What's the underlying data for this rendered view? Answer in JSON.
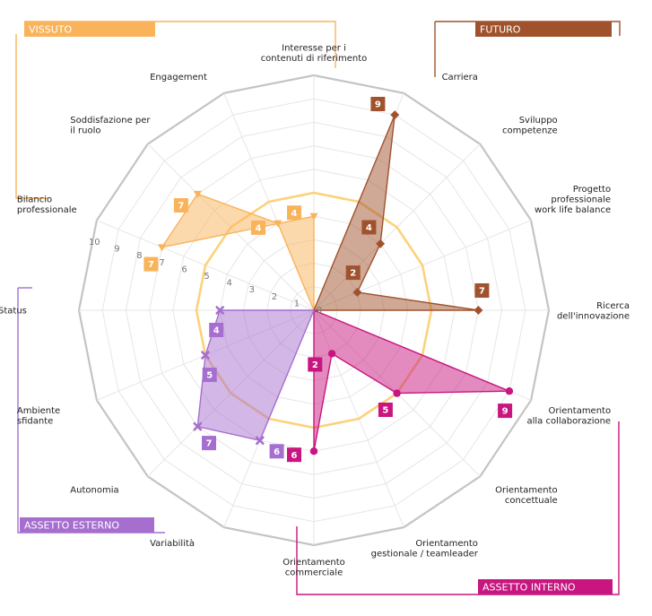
{
  "chart_data": {
    "type": "radar",
    "rmax": 10,
    "ticks": [
      "0",
      "1",
      "2",
      "3",
      "4",
      "5",
      "6",
      "7",
      "8",
      "9",
      "10"
    ],
    "axes": [
      [
        "Interesse per i",
        "contenuti di riferimento"
      ],
      [
        "Carriera"
      ],
      [
        "Sviluppo",
        "competenze"
      ],
      [
        "Progetto",
        "professionale",
        "work life balance"
      ],
      [
        "Ricerca",
        "dell'innovazione"
      ],
      [
        "Orientamento",
        "alla collaborazione"
      ],
      [
        "Orientamento",
        "concettuale"
      ],
      [
        "Orientamento",
        "gestionale / teamleader"
      ],
      [
        "Orientamento",
        "commerciale"
      ],
      [
        "Variabilità"
      ],
      [
        "Autonomia"
      ],
      [
        "Ambiente",
        "sfidante"
      ],
      [
        "Status"
      ],
      [
        "Bilancio",
        "professionale"
      ],
      [
        "Soddisfazione per",
        "il ruolo"
      ],
      [
        "Engagement"
      ]
    ],
    "reference_values": [
      5,
      5,
      5,
      5,
      5,
      5,
      5,
      5,
      5,
      5,
      5,
      5,
      5,
      5,
      5,
      5
    ],
    "reference_color": "#FCD27B",
    "groups": [
      {
        "name": "VISSUTO",
        "color": "#F9B35A",
        "marker": "triangle",
        "values": [
          {
            "axis": 0,
            "value": 4
          },
          {
            "axis": 13,
            "value": 7
          },
          {
            "axis": 14,
            "value": 7
          },
          {
            "axis": 15,
            "value": 4
          }
        ]
      },
      {
        "name": "FUTURO",
        "color": "#A0522D",
        "marker": "diamond",
        "values": [
          {
            "axis": 1,
            "value": 9
          },
          {
            "axis": 2,
            "value": 4
          },
          {
            "axis": 3,
            "value": 2
          },
          {
            "axis": 4,
            "value": 7
          }
        ]
      },
      {
        "name": "ASSETTO INTERNO",
        "color": "#C8157F",
        "marker": "circle",
        "values": [
          {
            "axis": 5,
            "value": 9
          },
          {
            "axis": 6,
            "value": 5
          },
          {
            "axis": 7,
            "value": 2
          },
          {
            "axis": 8,
            "value": 6
          }
        ]
      },
      {
        "name": "ASSETTO ESTERNO",
        "color": "#A66FCF",
        "marker": "x",
        "values": [
          {
            "axis": 9,
            "value": 6
          },
          {
            "axis": 10,
            "value": 7
          },
          {
            "axis": 11,
            "value": 5
          },
          {
            "axis": 12,
            "value": 4
          }
        ]
      }
    ]
  }
}
